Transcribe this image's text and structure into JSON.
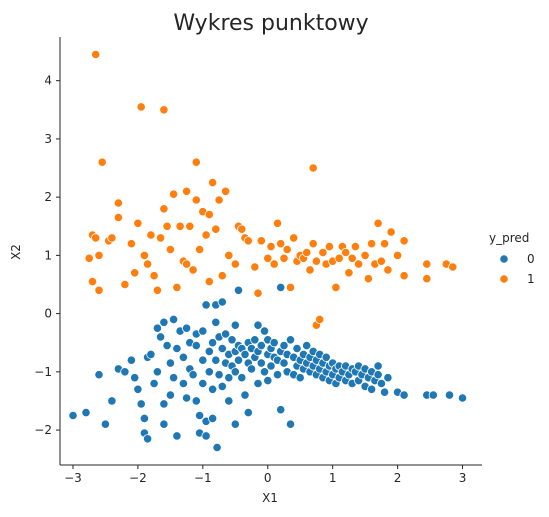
{
  "chart_data": {
    "type": "scatter",
    "title": "Wykres punktowy",
    "xlabel": "X1",
    "ylabel": "X2",
    "xlim": [
      -3.2,
      3.3
    ],
    "ylim": [
      -2.6,
      4.75
    ],
    "xticks": [
      -3,
      -2,
      -1,
      0,
      1,
      2,
      3
    ],
    "yticks": [
      -2,
      -1,
      0,
      1,
      2,
      3,
      4
    ],
    "grid": false,
    "legend": {
      "title": "y_pred",
      "placement": "right",
      "entries": [
        {
          "label": "0",
          "color": "#1f77b4"
        },
        {
          "label": "1",
          "color": "#ff7f0e"
        }
      ]
    },
    "series": [
      {
        "name": "0",
        "color": "#1f77b4",
        "points": [
          [
            -3.0,
            -1.75
          ],
          [
            -2.8,
            -1.7
          ],
          [
            -2.6,
            -1.05
          ],
          [
            -2.5,
            -1.9
          ],
          [
            -2.4,
            -1.5
          ],
          [
            -2.3,
            -0.95
          ],
          [
            -2.2,
            -1.0
          ],
          [
            -2.1,
            -0.8
          ],
          [
            -2.05,
            -1.1
          ],
          [
            -2.0,
            -1.3
          ],
          [
            -1.95,
            -1.55
          ],
          [
            -1.9,
            -1.8
          ],
          [
            -1.9,
            -2.05
          ],
          [
            -1.85,
            -2.15
          ],
          [
            -1.85,
            -0.75
          ],
          [
            -1.8,
            -0.7
          ],
          [
            -1.75,
            -1.2
          ],
          [
            -1.7,
            -1.0
          ],
          [
            -1.7,
            -0.25
          ],
          [
            -1.65,
            -0.4
          ],
          [
            -1.6,
            -1.9
          ],
          [
            -1.6,
            -1.55
          ],
          [
            -1.6,
            -0.15
          ],
          [
            -1.55,
            -0.55
          ],
          [
            -1.5,
            -0.85
          ],
          [
            -1.5,
            -1.4
          ],
          [
            -1.45,
            -0.1
          ],
          [
            -1.45,
            -1.1
          ],
          [
            -1.4,
            -0.6
          ],
          [
            -1.4,
            -2.1
          ],
          [
            -1.35,
            -0.3
          ],
          [
            -1.3,
            -0.75
          ],
          [
            -1.3,
            -1.2
          ],
          [
            -1.25,
            -0.25
          ],
          [
            -1.25,
            -1.45
          ],
          [
            -1.2,
            -0.5
          ],
          [
            -1.2,
            -0.95
          ],
          [
            -1.15,
            -1.05
          ],
          [
            -1.1,
            -0.35
          ],
          [
            -1.1,
            -0.55
          ],
          [
            -1.1,
            -1.5
          ],
          [
            -1.05,
            -1.75
          ],
          [
            -1.05,
            -2.05
          ],
          [
            -1.0,
            -0.3
          ],
          [
            -1.0,
            -0.8
          ],
          [
            -1.0,
            -1.2
          ],
          [
            -0.95,
            -1.85
          ],
          [
            -0.95,
            -2.1
          ],
          [
            -0.95,
            0.15
          ],
          [
            -0.9,
            -0.65
          ],
          [
            -0.9,
            -1.0
          ],
          [
            -0.85,
            -0.5
          ],
          [
            -0.85,
            -1.3
          ],
          [
            -0.85,
            -1.8
          ],
          [
            -0.8,
            -0.15
          ],
          [
            -0.8,
            -0.8
          ],
          [
            -0.8,
            0.15
          ],
          [
            -0.78,
            -2.3
          ],
          [
            -0.75,
            -0.4
          ],
          [
            -0.75,
            -1.05
          ],
          [
            -0.7,
            -0.6
          ],
          [
            -0.7,
            -1.25
          ],
          [
            -0.7,
            0.2
          ],
          [
            -0.65,
            -0.85
          ],
          [
            -0.65,
            -0.35
          ],
          [
            -0.6,
            -0.7
          ],
          [
            -0.6,
            -1.1
          ],
          [
            -0.6,
            -1.5
          ],
          [
            -0.55,
            -0.45
          ],
          [
            -0.55,
            -0.9
          ],
          [
            -0.5,
            -0.2
          ],
          [
            -0.5,
            -0.65
          ],
          [
            -0.5,
            -1.0
          ],
          [
            -0.5,
            -1.9
          ],
          [
            -0.45,
            -0.55
          ],
          [
            -0.45,
            -0.8
          ],
          [
            -0.45,
            0.4
          ],
          [
            -0.4,
            -0.6
          ],
          [
            -0.4,
            -1.1
          ],
          [
            -0.35,
            -0.7
          ],
          [
            -0.35,
            -1.4
          ],
          [
            -0.3,
            -0.5
          ],
          [
            -0.3,
            -0.85
          ],
          [
            -0.3,
            -1.7
          ],
          [
            -0.25,
            -0.6
          ],
          [
            -0.25,
            -0.95
          ],
          [
            -0.2,
            -0.75
          ],
          [
            -0.2,
            -0.45
          ],
          [
            -0.15,
            -0.65
          ],
          [
            -0.15,
            -1.2
          ],
          [
            -0.15,
            -0.2
          ],
          [
            -0.1,
            -0.55
          ],
          [
            -0.1,
            -0.85
          ],
          [
            -0.05,
            -1.0
          ],
          [
            -0.05,
            -0.3
          ],
          [
            0.0,
            -0.7
          ],
          [
            0.0,
            -1.15
          ],
          [
            0.0,
            -0.45
          ],
          [
            0.05,
            -0.6
          ],
          [
            0.05,
            -0.9
          ],
          [
            0.1,
            -0.5
          ],
          [
            0.1,
            -0.75
          ],
          [
            0.15,
            -0.8
          ],
          [
            0.15,
            -1.05
          ],
          [
            0.2,
            -0.65
          ],
          [
            0.2,
            -1.65
          ],
          [
            0.2,
            0.45
          ],
          [
            0.25,
            -0.85
          ],
          [
            0.25,
            -0.55
          ],
          [
            0.3,
            -1.0
          ],
          [
            0.3,
            -0.7
          ],
          [
            0.35,
            -1.9
          ],
          [
            0.35,
            -0.45
          ],
          [
            0.4,
            -0.75
          ],
          [
            0.4,
            -1.05
          ],
          [
            0.45,
            -0.9
          ],
          [
            0.45,
            -0.6
          ],
          [
            0.5,
            -0.8
          ],
          [
            0.5,
            -1.1
          ],
          [
            0.55,
            -0.7
          ],
          [
            0.55,
            -0.95
          ],
          [
            0.6,
            -0.85
          ],
          [
            0.6,
            -0.55
          ],
          [
            0.65,
            -1.0
          ],
          [
            0.65,
            -0.75
          ],
          [
            0.7,
            -0.9
          ],
          [
            0.7,
            -0.65
          ],
          [
            0.75,
            -1.05
          ],
          [
            0.75,
            -0.8
          ],
          [
            0.8,
            -0.95
          ],
          [
            0.8,
            -0.7
          ],
          [
            0.85,
            -0.85
          ],
          [
            0.85,
            -1.1
          ],
          [
            0.9,
            -1.0
          ],
          [
            0.9,
            -0.75
          ],
          [
            0.95,
            -0.9
          ],
          [
            0.95,
            -1.15
          ],
          [
            1.0,
            -0.85
          ],
          [
            1.0,
            -1.05
          ],
          [
            1.05,
            -0.95
          ],
          [
            1.05,
            -1.2
          ],
          [
            1.1,
            -0.9
          ],
          [
            1.1,
            -1.1
          ],
          [
            1.15,
            -1.0
          ],
          [
            1.2,
            -0.9
          ],
          [
            1.2,
            -1.15
          ],
          [
            1.25,
            -1.05
          ],
          [
            1.3,
            -0.95
          ],
          [
            1.3,
            -1.2
          ],
          [
            1.35,
            -1.0
          ],
          [
            1.4,
            -0.9
          ],
          [
            1.4,
            -1.15
          ],
          [
            1.45,
            -1.05
          ],
          [
            1.5,
            -0.95
          ],
          [
            1.5,
            -1.25
          ],
          [
            1.55,
            -1.1
          ],
          [
            1.6,
            -1.0
          ],
          [
            1.6,
            -1.3
          ],
          [
            1.65,
            -1.15
          ],
          [
            1.7,
            -1.05
          ],
          [
            1.7,
            -0.9
          ],
          [
            1.75,
            -1.2
          ],
          [
            1.8,
            -1.35
          ],
          [
            1.85,
            -1.1
          ],
          [
            2.0,
            -1.35
          ],
          [
            2.1,
            -1.4
          ],
          [
            2.45,
            -1.4
          ],
          [
            2.55,
            -1.4
          ],
          [
            2.8,
            -1.4
          ],
          [
            3.0,
            -1.45
          ]
        ]
      },
      {
        "name": "1",
        "color": "#ff7f0e",
        "points": [
          [
            -2.65,
            4.45
          ],
          [
            -2.55,
            2.6
          ],
          [
            -2.75,
            0.95
          ],
          [
            -2.7,
            1.35
          ],
          [
            -2.65,
            1.3
          ],
          [
            -2.6,
            1.0
          ],
          [
            -2.7,
            0.55
          ],
          [
            -2.6,
            0.4
          ],
          [
            -2.45,
            1.25
          ],
          [
            -2.4,
            1.3
          ],
          [
            -2.3,
            1.9
          ],
          [
            -2.3,
            1.65
          ],
          [
            -2.2,
            0.5
          ],
          [
            -2.1,
            1.2
          ],
          [
            -2.05,
            0.7
          ],
          [
            -2.0,
            1.55
          ],
          [
            -1.95,
            3.55
          ],
          [
            -1.9,
            1.0
          ],
          [
            -1.85,
            0.85
          ],
          [
            -1.8,
            1.35
          ],
          [
            -1.75,
            0.65
          ],
          [
            -1.7,
            0.4
          ],
          [
            -1.65,
            1.3
          ],
          [
            -1.6,
            1.8
          ],
          [
            -1.6,
            3.5
          ],
          [
            -1.55,
            1.5
          ],
          [
            -1.5,
            1.1
          ],
          [
            -1.45,
            2.05
          ],
          [
            -1.4,
            0.45
          ],
          [
            -1.35,
            1.5
          ],
          [
            -1.3,
            0.9
          ],
          [
            -1.25,
            2.1
          ],
          [
            -1.25,
            0.85
          ],
          [
            -1.2,
            1.5
          ],
          [
            -1.15,
            0.75
          ],
          [
            -1.1,
            1.95
          ],
          [
            -1.1,
            2.6
          ],
          [
            -1.05,
            1.1
          ],
          [
            -1.0,
            1.75
          ],
          [
            -0.95,
            1.35
          ],
          [
            -0.9,
            0.55
          ],
          [
            -0.9,
            1.7
          ],
          [
            -0.85,
            2.25
          ],
          [
            -0.8,
            1.45
          ],
          [
            -0.75,
            1.95
          ],
          [
            -0.7,
            0.65
          ],
          [
            -0.65,
            2.1
          ],
          [
            -0.6,
            1.0
          ],
          [
            -0.5,
            0.85
          ],
          [
            -0.45,
            1.5
          ],
          [
            -0.4,
            1.45
          ],
          [
            -0.35,
            1.3
          ],
          [
            -0.3,
            1.25
          ],
          [
            -0.2,
            0.8
          ],
          [
            -0.15,
            0.35
          ],
          [
            -0.1,
            1.25
          ],
          [
            0.0,
            0.95
          ],
          [
            0.05,
            1.15
          ],
          [
            0.1,
            0.85
          ],
          [
            0.15,
            1.55
          ],
          [
            0.2,
            1.2
          ],
          [
            0.25,
            0.95
          ],
          [
            0.3,
            1.1
          ],
          [
            0.35,
            0.45
          ],
          [
            0.4,
            1.3
          ],
          [
            0.45,
            0.9
          ],
          [
            0.5,
            1.0
          ],
          [
            0.55,
            0.95
          ],
          [
            0.6,
            1.05
          ],
          [
            0.65,
            0.75
          ],
          [
            0.7,
            1.2
          ],
          [
            0.7,
            2.5
          ],
          [
            0.75,
            0.9
          ],
          [
            0.75,
            -0.2
          ],
          [
            0.8,
            -0.1
          ],
          [
            0.85,
            1.05
          ],
          [
            0.9,
            0.85
          ],
          [
            0.95,
            1.15
          ],
          [
            1.0,
            0.9
          ],
          [
            1.05,
            0.45
          ],
          [
            1.1,
            0.95
          ],
          [
            1.15,
            1.15
          ],
          [
            1.2,
            1.05
          ],
          [
            1.25,
            0.7
          ],
          [
            1.3,
            0.95
          ],
          [
            1.35,
            1.15
          ],
          [
            1.4,
            0.85
          ],
          [
            1.5,
            1.0
          ],
          [
            1.55,
            0.6
          ],
          [
            1.6,
            1.2
          ],
          [
            1.65,
            0.85
          ],
          [
            1.7,
            1.55
          ],
          [
            1.75,
            0.9
          ],
          [
            1.8,
            1.2
          ],
          [
            1.85,
            0.75
          ],
          [
            1.9,
            1.4
          ],
          [
            2.0,
            1.0
          ],
          [
            2.1,
            0.65
          ],
          [
            2.1,
            1.25
          ],
          [
            2.45,
            0.6
          ],
          [
            2.45,
            0.85
          ],
          [
            2.75,
            0.85
          ],
          [
            2.85,
            0.8
          ]
        ]
      }
    ]
  }
}
